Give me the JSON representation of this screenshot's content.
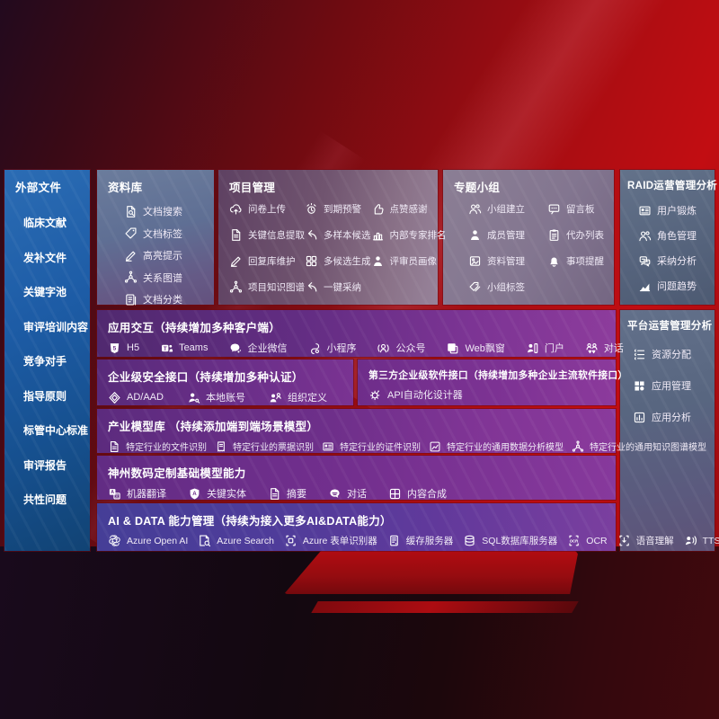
{
  "colors": {
    "background_red": "#b00d12",
    "divider_red": "#8a0d12",
    "sidebar_blue": "#1d5ca6",
    "panel_purple": "#7b2f8f",
    "aidata_indigo": "#473d96"
  },
  "sidebar": {
    "title": "外部文件",
    "items": [
      "临床文献",
      "发补文件",
      "关键字池",
      "审评培训内容",
      "竞争对手",
      "指导原则",
      "标管中心标准",
      "审评报告",
      "共性问题"
    ]
  },
  "panels": {
    "datalib": {
      "title": "资料库",
      "items": [
        {
          "label": "文档搜索",
          "icon": "doc-search-icon"
        },
        {
          "label": "文档标签",
          "icon": "tag-icon"
        },
        {
          "label": "高亮提示",
          "icon": "highlight-pen-icon"
        },
        {
          "label": "关系图谱",
          "icon": "relation-graph-icon"
        },
        {
          "label": "文档分类",
          "icon": "doc-category-icon"
        }
      ]
    },
    "project": {
      "title": "项目管理",
      "columns": [
        [
          {
            "label": "问卷上传",
            "icon": "cloud-upload-icon"
          },
          {
            "label": "关键信息提取",
            "icon": "info-extract-icon"
          },
          {
            "label": "回复库维护",
            "icon": "reply-edit-icon"
          },
          {
            "label": "项目知识图谱",
            "icon": "knowledge-graph-icon"
          }
        ],
        [
          {
            "label": "到期预警",
            "icon": "alarm-icon"
          },
          {
            "label": "多样本候选",
            "icon": "multi-candidate-icon"
          },
          {
            "label": "多候选生成",
            "icon": "multi-generate-icon"
          },
          {
            "label": "一键采纳",
            "icon": "adopt-icon"
          }
        ],
        [
          {
            "label": "点赞感谢",
            "icon": "thumbs-up-icon"
          },
          {
            "label": "内部专家排名",
            "icon": "ranking-icon"
          },
          {
            "label": "评审员画像",
            "icon": "reviewer-portrait-icon"
          }
        ]
      ]
    },
    "group": {
      "title": "专题小组",
      "columns": [
        [
          {
            "label": "小组建立",
            "icon": "group-create-icon"
          },
          {
            "label": "成员管理",
            "icon": "member-manage-icon"
          },
          {
            "label": "资料管理",
            "icon": "material-manage-icon"
          },
          {
            "label": "小组标签",
            "icon": "group-tags-icon"
          }
        ],
        [
          {
            "label": "留言板",
            "icon": "bbs-icon"
          },
          {
            "label": "代办列表",
            "icon": "todo-list-icon"
          },
          {
            "label": "事项提醒",
            "icon": "reminder-bell-icon"
          }
        ]
      ]
    },
    "raid": {
      "title": "RAID运营管理分析",
      "items": [
        {
          "label": "用户锻炼",
          "icon": "user-card-icon"
        },
        {
          "label": "角色管理",
          "icon": "roles-icon"
        },
        {
          "label": "采纳分析",
          "icon": "adoption-analysis-icon"
        },
        {
          "label": "问题趋势",
          "icon": "trend-icon"
        }
      ]
    },
    "platform": {
      "title": "平台运营管理分析",
      "items": [
        {
          "label": "资源分配",
          "icon": "resource-allocation-icon"
        },
        {
          "label": "应用管理",
          "icon": "app-manage-icon"
        },
        {
          "label": "应用分析",
          "icon": "app-analysis-icon"
        }
      ]
    }
  },
  "rows": {
    "interaction": {
      "title": "应用交互（持续增加多种客户端）",
      "items": [
        {
          "label": "H5",
          "icon": "h5-icon"
        },
        {
          "label": "Teams",
          "icon": "teams-icon"
        },
        {
          "label": "企业微信",
          "icon": "wechat-work-icon"
        },
        {
          "label": "小程序",
          "icon": "miniprogram-icon"
        },
        {
          "label": "公众号",
          "icon": "official-account-icon"
        },
        {
          "label": "Web飘窗",
          "icon": "web-window-icon"
        },
        {
          "label": "门户",
          "icon": "portal-icon"
        },
        {
          "label": "对话",
          "icon": "dialog-icon"
        }
      ]
    },
    "security": {
      "title": "企业级安全接口（持续增加多种认证）",
      "items": [
        {
          "label": "AD/AAD",
          "icon": "azure-ad-icon"
        },
        {
          "label": "本地账号",
          "icon": "local-account-icon"
        },
        {
          "label": "组织定义",
          "icon": "org-define-icon"
        }
      ]
    },
    "thirdparty": {
      "title": "第三方企业级软件接口（持续增加多种企业主流软件接口）",
      "items": [
        {
          "label": "API自动化设计器",
          "icon": "api-designer-icon"
        }
      ]
    },
    "industry": {
      "title": "产业模型库 （持续添加端到端场景模型）",
      "items": [
        {
          "label": "特定行业的文件识别",
          "icon": "file-recognition-icon"
        },
        {
          "label": "特定行业的票据识别",
          "icon": "receipt-recognition-icon"
        },
        {
          "label": "特定行业的证件识别",
          "icon": "id-recognition-icon"
        },
        {
          "label": "特定行业的通用数据分析模型",
          "icon": "data-analysis-model-icon"
        },
        {
          "label": "特定行业的通用知识图谱模型",
          "icon": "knowledge-graph-model-icon"
        }
      ]
    },
    "foundation": {
      "title": "神州数码定制基础模型能力",
      "items": [
        {
          "label": "机器翻译",
          "icon": "translate-icon"
        },
        {
          "label": "关键实体",
          "icon": "entity-icon"
        },
        {
          "label": "摘要",
          "icon": "summary-icon"
        },
        {
          "label": "对话",
          "icon": "chat-icon"
        },
        {
          "label": "内容合成",
          "icon": "compose-icon"
        }
      ]
    },
    "aidata": {
      "title": "AI & DATA 能力管理（持续为接入更多AI&DATA能力）",
      "items": [
        {
          "label": "Azure Open AI",
          "icon": "openai-icon"
        },
        {
          "label": "Azure Search",
          "icon": "azure-search-icon"
        },
        {
          "label": "Azure 表单识别器",
          "icon": "form-recognizer-icon"
        },
        {
          "label": "缓存服务器",
          "icon": "cache-server-icon"
        },
        {
          "label": "SQL数据库服务器",
          "icon": "sql-db-icon"
        },
        {
          "label": "OCR",
          "icon": "ocr-icon"
        },
        {
          "label": "语音理解",
          "icon": "speech-icon"
        },
        {
          "label": "TTS",
          "icon": "tts-icon"
        }
      ]
    }
  }
}
